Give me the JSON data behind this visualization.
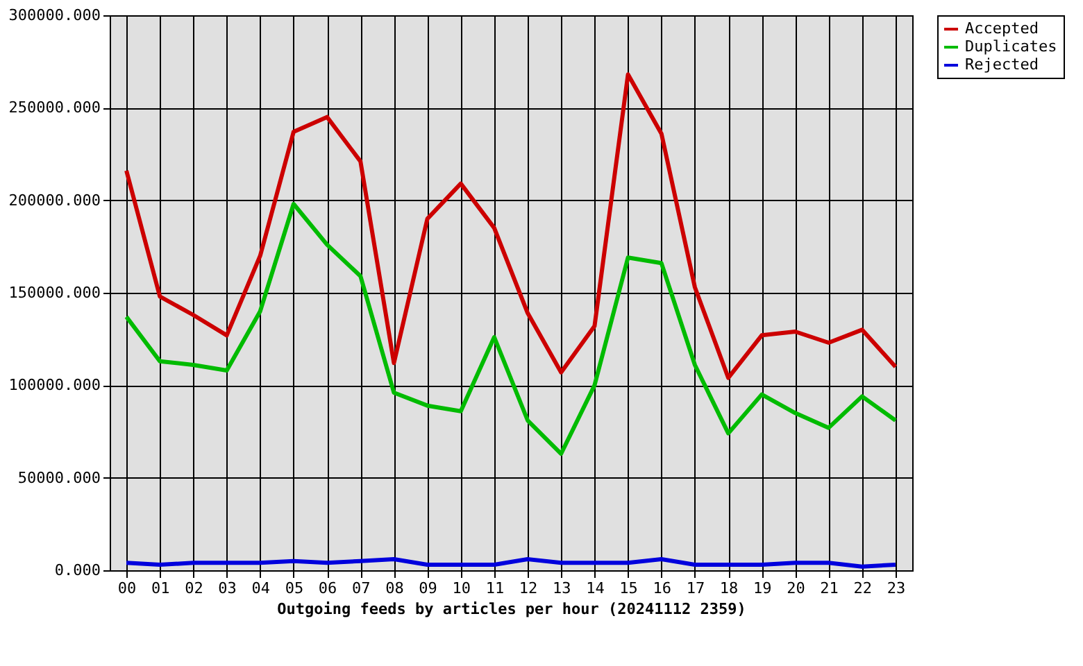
{
  "chart_data": {
    "type": "line",
    "xlabel": "Outgoing feeds by articles per hour (20241112 2359)",
    "categories": [
      "00",
      "01",
      "02",
      "03",
      "04",
      "05",
      "06",
      "07",
      "08",
      "09",
      "10",
      "11",
      "12",
      "13",
      "14",
      "15",
      "16",
      "17",
      "18",
      "19",
      "20",
      "21",
      "22",
      "23"
    ],
    "series": [
      {
        "name": "Accepted",
        "color": "#cc0000",
        "values": [
          216000,
          148000,
          138000,
          127000,
          170000,
          237000,
          245000,
          221000,
          112000,
          190000,
          209000,
          185000,
          139000,
          107000,
          132000,
          268000,
          236000,
          153000,
          104000,
          127000,
          129000,
          123000,
          130000,
          110000
        ]
      },
      {
        "name": "Duplicates",
        "color": "#00bb00",
        "values": [
          137000,
          113000,
          111000,
          108000,
          140000,
          198000,
          176000,
          159000,
          96000,
          89000,
          86000,
          126000,
          81000,
          63000,
          100000,
          169000,
          166000,
          111000,
          74000,
          95000,
          85000,
          77000,
          94000,
          81000
        ]
      },
      {
        "name": "Rejected",
        "color": "#0000dd",
        "values": [
          4000,
          3000,
          4000,
          4000,
          4000,
          5000,
          4000,
          5000,
          6000,
          3000,
          3000,
          3000,
          6000,
          4000,
          4000,
          4000,
          6000,
          3000,
          3000,
          3000,
          4000,
          4000,
          2000,
          3000
        ]
      }
    ],
    "ylim": [
      0,
      300000
    ],
    "yticks": [
      {
        "value": 0,
        "label": "0.000"
      },
      {
        "value": 50000,
        "label": "50000.000"
      },
      {
        "value": 100000,
        "label": "100000.000"
      },
      {
        "value": 150000,
        "label": "150000.000"
      },
      {
        "value": 200000,
        "label": "200000.000"
      },
      {
        "value": 250000,
        "label": "250000.000"
      },
      {
        "value": 300000,
        "label": "300000.000"
      }
    ],
    "grid": true,
    "legend": "top right",
    "marker": "none",
    "line_style": "solid"
  }
}
